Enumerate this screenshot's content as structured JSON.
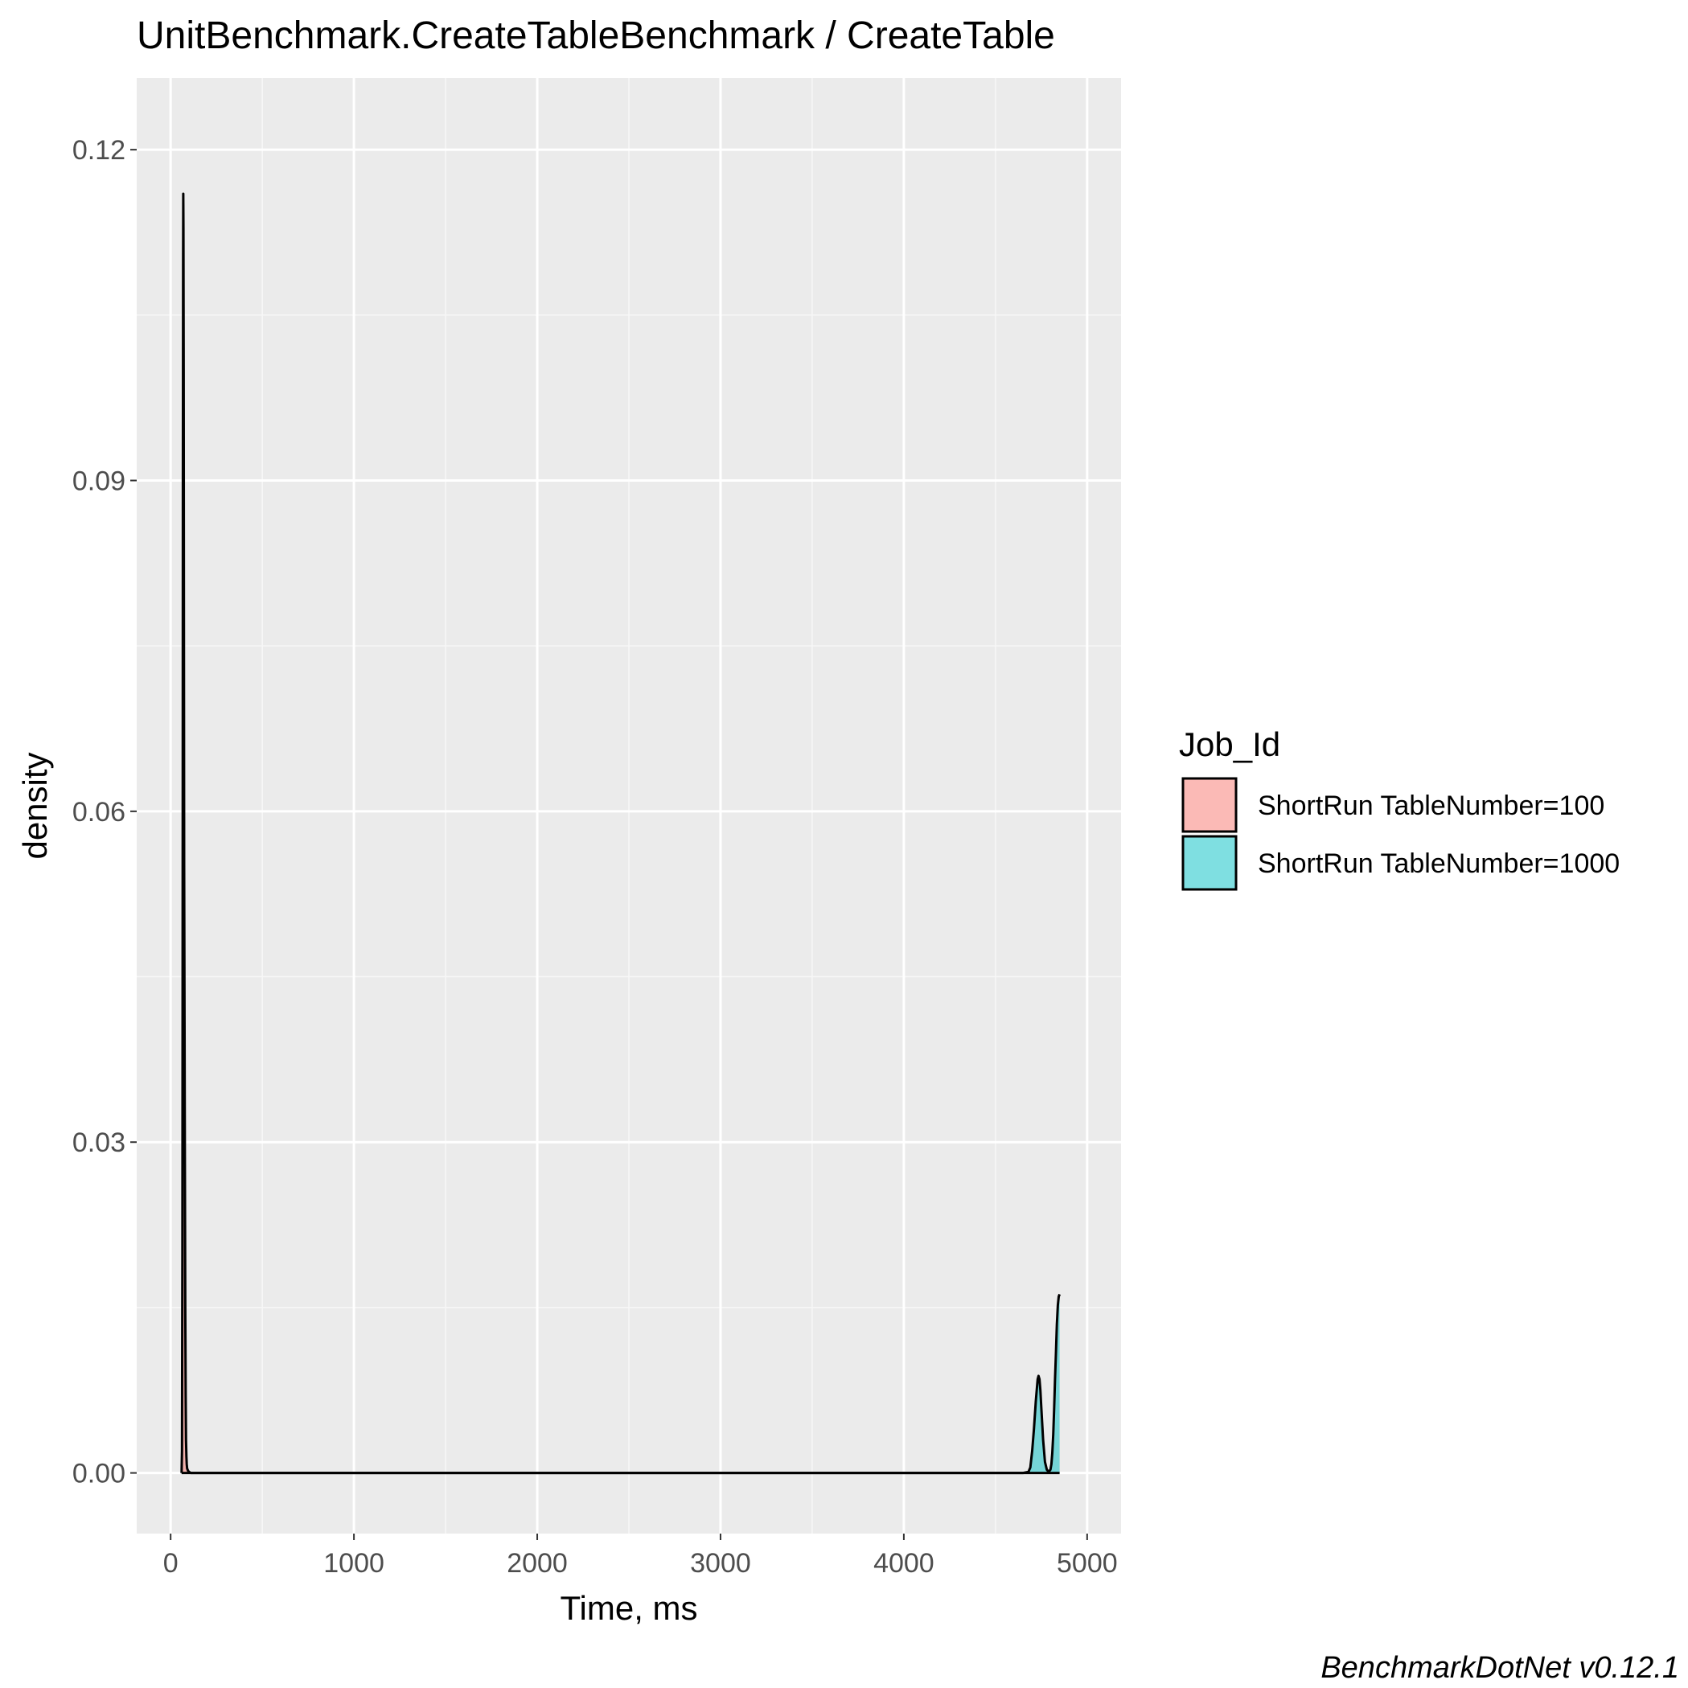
{
  "chart_data": {
    "type": "area",
    "title": "UnitBenchmark.CreateTableBenchmark / CreateTable",
    "xlabel": "Time, ms",
    "ylabel": "density",
    "xlim": [
      -185,
      5185
    ],
    "ylim": [
      -0.0055,
      0.1265
    ],
    "xticks": [
      0,
      1000,
      2000,
      3000,
      4000,
      5000
    ],
    "xtick_labels": [
      "0",
      "1000",
      "2000",
      "3000",
      "4000",
      "5000"
    ],
    "yticks": [
      0,
      0.03,
      0.06,
      0.09,
      0.12
    ],
    "ytick_labels": [
      "0.00",
      "0.03",
      "0.06",
      "0.09",
      "0.12"
    ],
    "grid": true,
    "legend_position": "right",
    "legend_title": "Job_Id",
    "caption": "BenchmarkDotNet v0.12.1",
    "series": [
      {
        "name": "ShortRun TableNumber=100",
        "color": "#F8766D",
        "x": [
          60,
          62,
          64,
          66,
          67,
          68,
          69,
          70,
          71,
          72,
          73,
          74,
          76,
          78,
          80,
          82,
          84,
          86,
          88,
          90,
          95,
          100,
          110,
          120,
          200,
          400,
          1000,
          2000,
          3000,
          4000,
          4500,
          4680,
          4700,
          4720,
          4740,
          4760,
          4780,
          4800,
          4820,
          4840,
          4850
        ],
        "y": [
          0,
          0.002,
          0.02,
          0.06,
          0.09,
          0.11,
          0.116,
          0.113,
          0.1,
          0.085,
          0.07,
          0.055,
          0.04,
          0.028,
          0.015,
          0.007,
          0.003,
          0.0015,
          0.0008,
          0.0004,
          0.0002,
          0.0001,
          0,
          0,
          0,
          0,
          0,
          0,
          0,
          0,
          0,
          0,
          0,
          0,
          0,
          0,
          0,
          0,
          0,
          0,
          0
        ]
      },
      {
        "name": "ShortRun TableNumber=1000",
        "color": "#00BFC4",
        "x": [
          60,
          100,
          200,
          500,
          1000,
          2000,
          3000,
          4000,
          4500,
          4600,
          4650,
          4680,
          4690,
          4700,
          4710,
          4720,
          4730,
          4735,
          4740,
          4745,
          4750,
          4760,
          4770,
          4780,
          4790,
          4800,
          4805,
          4810,
          4815,
          4820,
          4825,
          4830,
          4835,
          4840,
          4845,
          4850
        ],
        "y": [
          0,
          0,
          0,
          0,
          0,
          0,
          0,
          0,
          0,
          0,
          0,
          0.0001,
          0.0005,
          0.002,
          0.004,
          0.0065,
          0.0085,
          0.0088,
          0.0085,
          0.0075,
          0.006,
          0.003,
          0.001,
          0.0003,
          0.0001,
          0.0003,
          0.0008,
          0.0018,
          0.0035,
          0.0058,
          0.0085,
          0.011,
          0.0135,
          0.0152,
          0.016,
          0.0162
        ]
      }
    ]
  }
}
